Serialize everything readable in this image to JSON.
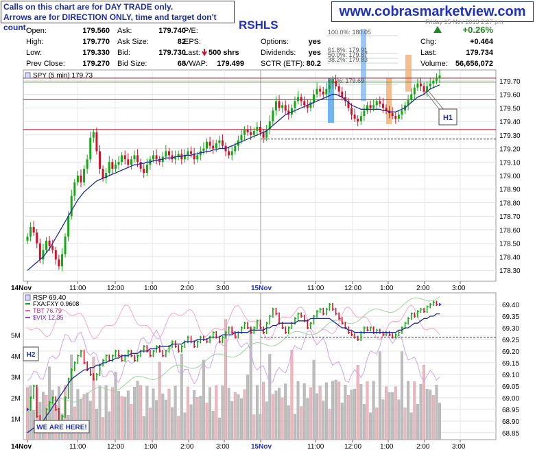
{
  "notes": {
    "line1": "Calls on this chart are for DAY TRADE only.",
    "line2": "Arrows are for DIRECTION ONLY, time and target don't count."
  },
  "site_url": "www.cobrasmarketview.com",
  "ticker": "RSHLS",
  "header_time": "Friday 15 Nov 2013 2:27 pm",
  "quote": {
    "open": {
      "label": "Open:",
      "value": "179.560"
    },
    "high": {
      "label": "High:",
      "value": "179.770"
    },
    "low": {
      "label": "Low:",
      "value": "179.330"
    },
    "prev_close": {
      "label": "Prev Close:",
      "value": "179.270"
    },
    "ask": {
      "label": "Ask:",
      "value": "179.740"
    },
    "ask_size": {
      "label": "Ask Size:",
      "value": "82"
    },
    "bid": {
      "label": "Bid:",
      "value": "179.730"
    },
    "bid_size": {
      "label": "Bid Size:",
      "value": "68"
    },
    "pe": {
      "label": "P/E:",
      "value": ""
    },
    "eps": {
      "label": "EPS:",
      "value": ""
    },
    "last_shares": {
      "label": "Last:",
      "value": "500 shrs"
    },
    "vwap": {
      "label": "VWAP:",
      "value": "179.499"
    },
    "options": {
      "label": "Options:",
      "value": "yes"
    },
    "dividends": {
      "label": "Dividends:",
      "value": "yes"
    },
    "sctr": {
      "label": "SCTR (ETF):",
      "value": "80.2"
    },
    "change_pct": "+0.26%",
    "chg": {
      "label": "Chg:",
      "value": "+0.464"
    },
    "last": {
      "label": "Last:",
      "value": "179.734"
    },
    "volume": {
      "label": "Volume:",
      "value": "56,656,072"
    }
  },
  "colors": {
    "up": "#15a815",
    "down": "#d2102a",
    "flat": "#2020c8",
    "ma": "#1c2d96",
    "up_green_arrow": "#1f8a1f",
    "down_arrow": "#c8102e"
  },
  "chart_data": [
    {
      "type": "line",
      "title": "SPY (5 min) 179.73",
      "y_ticks": [
        178.3,
        178.4,
        178.5,
        178.6,
        178.7,
        178.8,
        178.9,
        179.0,
        179.1,
        179.2,
        179.3,
        179.4,
        179.5,
        179.6,
        179.7
      ],
      "y_tick_labels": [
        "178.30",
        "178.40",
        "178.50",
        "178.60",
        "178.70",
        "178.80",
        "178.90",
        "179.00",
        "179.10",
        "179.20",
        "179.30",
        "179.40",
        "179.50",
        "179.60",
        "179.70"
      ],
      "ylim": [
        178.22,
        179.78
      ],
      "x_tick_labels": [
        "14Nov",
        "11:00",
        "12:00",
        "1:00",
        "2:00",
        "3:00",
        "15Nov",
        "11:00",
        "12:00",
        "1:00",
        "2:00",
        "3:00"
      ],
      "horizontal_lines": [
        179.72,
        179.56,
        179.34
      ],
      "dashed_line": 179.27,
      "fibonacci": [
        {
          "label": "100.0%: 180.05"
        },
        {
          "label": "61.8%: 179.91"
        },
        {
          "label": "50.0%: 179.87"
        },
        {
          "label": "38.2%: 179.83"
        },
        {
          "label": "0.0%: 179.69"
        }
      ],
      "annotation": "H1",
      "close_series": [
        178.55,
        178.62,
        178.58,
        178.5,
        178.38,
        178.45,
        178.52,
        178.48,
        178.45,
        178.38,
        178.33,
        178.42,
        178.55,
        178.7,
        178.85,
        178.95,
        179.0,
        178.95,
        179.05,
        179.12,
        179.28,
        179.32,
        179.18,
        179.05,
        178.98,
        179.02,
        179.1,
        179.05,
        179.08,
        179.1,
        179.15,
        179.12,
        179.08,
        179.12,
        179.15,
        179.1,
        179.05,
        179.02,
        179.08,
        179.12,
        179.15,
        179.12,
        179.1,
        179.14,
        179.18,
        179.15,
        179.12,
        179.14,
        179.16,
        179.12,
        179.15,
        179.18,
        179.16,
        179.12,
        179.15,
        179.18,
        179.2,
        179.25,
        179.22,
        179.2,
        179.24,
        179.26,
        179.22,
        179.18,
        179.15,
        179.18,
        179.22,
        179.26,
        179.3,
        179.34,
        179.32,
        179.3,
        179.33,
        179.36,
        179.32,
        179.28,
        179.34,
        179.4,
        179.48,
        179.55,
        179.5,
        179.52,
        179.48,
        179.45,
        179.5,
        179.55,
        179.58,
        179.55,
        179.52,
        179.5,
        179.54,
        179.6,
        179.64,
        179.62,
        179.6,
        179.64,
        179.68,
        179.7,
        179.66,
        179.62,
        179.58,
        179.55,
        179.5,
        179.45,
        179.42,
        179.4,
        179.44,
        179.48,
        179.52,
        179.5,
        179.52,
        179.55,
        179.53,
        179.5,
        179.48,
        179.46,
        179.44,
        179.42,
        179.45,
        179.48,
        179.52,
        179.56,
        179.6,
        179.65,
        179.68,
        179.66,
        179.62,
        179.66,
        179.68,
        179.7,
        179.72,
        179.74
      ],
      "ma_series": [
        178.3,
        178.32,
        178.34,
        178.36,
        178.38,
        178.4,
        178.43,
        178.46,
        178.5,
        178.54,
        178.58,
        178.62,
        178.66,
        178.7,
        178.74,
        178.78,
        178.82,
        178.85,
        178.88,
        178.9,
        178.92,
        178.94,
        178.96,
        178.97,
        178.98,
        178.99,
        179.0,
        179.01,
        179.02,
        179.03,
        179.04,
        179.05,
        179.06,
        179.07,
        179.08,
        179.08,
        179.09,
        179.09,
        179.1,
        179.1,
        179.11,
        179.11,
        179.12,
        179.12,
        179.13,
        179.13,
        179.13,
        179.14,
        179.14,
        179.14,
        179.15,
        179.15,
        179.15,
        179.16,
        179.16,
        179.17,
        179.17,
        179.18,
        179.18,
        179.19,
        179.19,
        179.2,
        179.2,
        179.2,
        179.21,
        179.22,
        179.23,
        179.24,
        179.25,
        179.26,
        179.27,
        179.28,
        179.29,
        179.3,
        179.31,
        179.32,
        179.33,
        179.35,
        179.37,
        179.39,
        179.41,
        179.43,
        179.45,
        179.46,
        179.47,
        179.48,
        179.49,
        179.5,
        179.51,
        179.52,
        179.53,
        179.54,
        179.55,
        179.56,
        179.57,
        179.58,
        179.59,
        179.6,
        179.6,
        179.59,
        179.58,
        179.56,
        179.54,
        179.52,
        179.51,
        179.5,
        179.49,
        179.49,
        179.49,
        179.49,
        179.49,
        179.49,
        179.49,
        179.48,
        179.48,
        179.47,
        179.47,
        179.47,
        179.48,
        179.49,
        179.5,
        179.52,
        179.54,
        179.56,
        179.58,
        179.59,
        179.6,
        179.62,
        179.64,
        179.65,
        179.66,
        179.67
      ]
    },
    {
      "type": "line",
      "title": "RSP 69.40",
      "legend": [
        {
          "name": "FXA:FXY 0.9608"
        },
        {
          "name": "TBT 76.79"
        },
        {
          "name": "$VIX 12.35"
        }
      ],
      "y_tick_labels": [
        "69.40",
        "69.35",
        "69.30",
        "69.25",
        "69.20",
        "69.15",
        "69.10",
        "69.05",
        "69.00",
        "68.95",
        "68.90",
        "68.85"
      ],
      "ylim": [
        68.82,
        69.45
      ],
      "volume_tick_labels": [
        "5M",
        "4M",
        "3M",
        "2M",
        "1M"
      ],
      "x_tick_labels": [
        "14Nov",
        "11:00",
        "12:00",
        "1:00",
        "2:00",
        "3:00",
        "15Nov",
        "11:00",
        "12:00",
        "1:00",
        "2:00",
        "3:00"
      ],
      "dashed_line": 69.26,
      "annotation_h2": "H2",
      "annotation_here": "WE ARE HERE!",
      "close_series": [
        68.95,
        69.0,
        69.05,
        68.92,
        68.88,
        68.9,
        68.95,
        68.98,
        69.0,
        68.95,
        68.9,
        68.92,
        69.0,
        69.08,
        69.12,
        69.15,
        69.18,
        69.2,
        69.15,
        69.12,
        69.1,
        69.08,
        69.1,
        69.14,
        69.16,
        69.18,
        69.16,
        69.18,
        69.2,
        69.18,
        69.16,
        69.18,
        69.2,
        69.18,
        69.16,
        69.18,
        69.2,
        69.22,
        69.2,
        69.18,
        69.2,
        69.22,
        69.2,
        69.18,
        69.2,
        69.22,
        69.24,
        69.22,
        69.2,
        69.22,
        69.24,
        69.26,
        69.24,
        69.22,
        69.24,
        69.26,
        69.25,
        69.24,
        69.26,
        69.28,
        69.26,
        69.24,
        69.26,
        69.28,
        69.3,
        69.28,
        69.26,
        69.28,
        69.3,
        69.32,
        69.3,
        69.28,
        69.3,
        69.33,
        69.3,
        69.28,
        69.32,
        69.35,
        69.38,
        69.36,
        69.32,
        69.3,
        69.28,
        69.3,
        69.32,
        69.34,
        69.36,
        69.35,
        69.33,
        69.3,
        69.32,
        69.35,
        69.37,
        69.38,
        69.36,
        69.38,
        69.4,
        69.38,
        69.36,
        69.34,
        69.32,
        69.3,
        69.28,
        69.27,
        69.26,
        69.25,
        69.28,
        69.3,
        69.29,
        69.3,
        69.28,
        69.29,
        69.28,
        69.27,
        69.28,
        69.27,
        69.26,
        69.27,
        69.28,
        69.3,
        69.32,
        69.34,
        69.36,
        69.35,
        69.37,
        69.38,
        69.37,
        69.39,
        69.4,
        69.41,
        69.4,
        69.4
      ],
      "ma_series": [
        68.85,
        68.86,
        68.87,
        68.88,
        68.89,
        68.9,
        68.92,
        68.94,
        68.96,
        68.98,
        69.0,
        69.02,
        69.04,
        69.06,
        69.08,
        69.09,
        69.1,
        69.11,
        69.12,
        69.12,
        69.13,
        69.13,
        69.14,
        69.14,
        69.15,
        69.15,
        69.16,
        69.16,
        69.17,
        69.17,
        69.18,
        69.18,
        69.18,
        69.19,
        69.19,
        69.19,
        69.2,
        69.2,
        69.2,
        69.21,
        69.21,
        69.21,
        69.22,
        69.22,
        69.22,
        69.22,
        69.23,
        69.23,
        69.23,
        69.23,
        69.24,
        69.24,
        69.24,
        69.24,
        69.25,
        69.25,
        69.25,
        69.25,
        69.26,
        69.26,
        69.26,
        69.26,
        69.27,
        69.27,
        69.27,
        69.27,
        69.28,
        69.28,
        69.28,
        69.28,
        69.28,
        69.29,
        69.29,
        69.29,
        69.29,
        69.29,
        69.3,
        69.3,
        69.31,
        69.31,
        69.32,
        69.32,
        69.32,
        69.32,
        69.32,
        69.32,
        69.33,
        69.33,
        69.33,
        69.33,
        69.34,
        69.34,
        69.34,
        69.34,
        69.34,
        69.34,
        69.34,
        69.33,
        69.32,
        69.31,
        69.3,
        69.3,
        69.29,
        69.29,
        69.28,
        69.28,
        69.28,
        69.28,
        69.28,
        69.28,
        69.28,
        69.28,
        69.28,
        69.28,
        69.28,
        69.28,
        69.28,
        69.28,
        69.29,
        69.29,
        69.3,
        69.3,
        69.31,
        69.32,
        69.32,
        69.33,
        69.34,
        69.34,
        69.35,
        69.35,
        69.36,
        69.36
      ]
    }
  ]
}
